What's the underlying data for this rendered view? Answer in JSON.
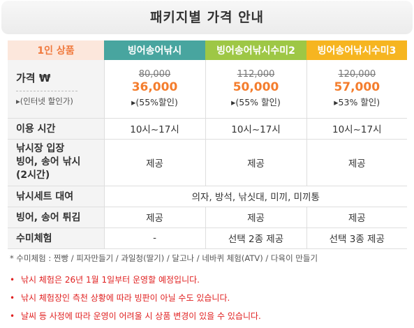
{
  "title": "패키지별 가격 안내",
  "header": {
    "label_col": "1인 상품",
    "packages": [
      "빙어송어낚시",
      "빙어송어낚시수미2",
      "빙어송어낚시수미3"
    ]
  },
  "price_row": {
    "label": "가격 ₩",
    "sub_label": "▸(인터넷 할인가)",
    "packages": [
      {
        "original": "80,000",
        "sale": "36,000",
        "discount": "▸(55%할인)"
      },
      {
        "original": "112,000",
        "sale": "50,000",
        "discount": "▸(55% 할인)"
      },
      {
        "original": "120,000",
        "sale": "57,000",
        "discount": "▸53% 할인)"
      }
    ]
  },
  "time_row": {
    "label": "이용 시간",
    "values": [
      "10시~17시",
      "10시~17시",
      "10시~17시"
    ]
  },
  "entry_row": {
    "label_lines": [
      "낚시장 입장",
      "빙어, 송어 낚시",
      "(2시간)"
    ],
    "values": [
      "제공",
      "제공",
      "제공"
    ]
  },
  "rental_row": {
    "label": "낚시세트 대여",
    "value": "의자, 방석, 낚싯대, 미끼, 미끼통"
  },
  "fry_row": {
    "label": "빙어, 송어 튀김",
    "values": [
      "제공",
      "제공",
      "제공"
    ]
  },
  "experience_row": {
    "label": "수미체험",
    "values": [
      "-",
      "선택 2종 제공",
      "선택 3종 제공"
    ]
  },
  "footnote": "* 수미체험 :  찐빵 /  피자만들기 / 과일청(딸기) / 달고나 / 네바퀴 체험(ATV) / 다육이 만들기",
  "notices": [
    "낚시 체험은 26년 1월 1일부터 운영할 예정입니다.",
    "낚시 체험장인 측천 상황에 따라 빙판이 아닐 수도 있습니다.",
    "날씨 등 사정에 따라 운영이 어려울 시 상품 변경이 있을 수 있습니다."
  ],
  "bullet_symbol": "•",
  "colors": {
    "pkg1": "#48a59f",
    "pkg2": "#9ec745",
    "pkg3": "#f6b520",
    "sale": "#f47d2d",
    "notice": "#e02020"
  }
}
